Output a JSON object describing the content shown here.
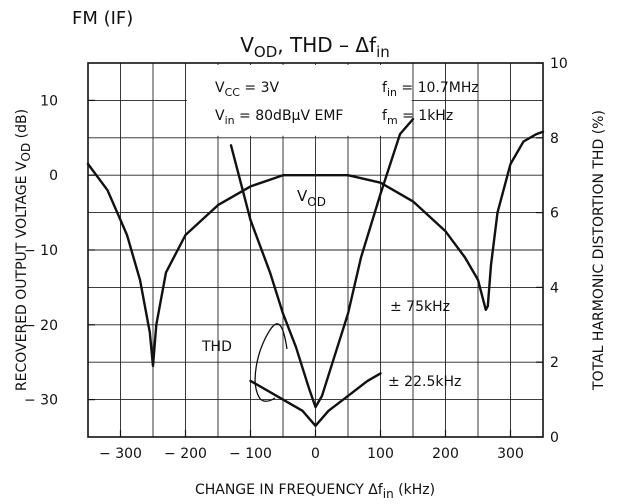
{
  "chart_data": {
    "type": "line",
    "header": "FM (IF)",
    "title": {
      "base": "V",
      "sub": "OD",
      "rest": ", THD  –  Δf",
      "sub2": "in"
    },
    "conditions": {
      "vcc": {
        "base": "V",
        "sub": "CC",
        "rest": " = 3V"
      },
      "vin": {
        "base": "V",
        "sub": "in",
        "rest": " = 80dBμV EMF"
      },
      "fin": {
        "base": "f",
        "sub": "in",
        "rest": " = 10.7MHz"
      },
      "fm": {
        "base": "f",
        "sub": "m",
        "rest": " = 1kHz"
      }
    },
    "xlabel": {
      "base": "CHANGE IN FREQUENCY  Δf",
      "sub": "in",
      "unit": "(kHz)"
    },
    "ylabel_left": {
      "text": "RECOVERED OUTPUT VOLTAGE",
      "symbol": {
        "base": "V",
        "sub": "OD"
      },
      "unit": "(dB)"
    },
    "ylabel_right": {
      "text": "TOTAL HARMONIC DISTORTION",
      "symbol": "THD",
      "unit": "(%)"
    },
    "xlim": [
      -350,
      350
    ],
    "ylim_left": [
      -35,
      15
    ],
    "ylim_right": [
      0,
      10
    ],
    "grid": true,
    "x_ticks": [
      {
        "v": -300,
        "label": "− 300"
      },
      {
        "v": -200,
        "label": "− 200"
      },
      {
        "v": -100,
        "label": "− 100"
      },
      {
        "v": 0,
        "label": "0"
      },
      {
        "v": 100,
        "label": "100"
      },
      {
        "v": 200,
        "label": "200"
      },
      {
        "v": 300,
        "label": "300"
      }
    ],
    "y_left_ticks": [
      {
        "v": 10,
        "label": "10"
      },
      {
        "v": 0,
        "label": "0"
      },
      {
        "v": -10,
        "label": "− 10"
      },
      {
        "v": -20,
        "label": "− 20"
      },
      {
        "v": -30,
        "label": "− 30"
      }
    ],
    "y_right_ticks": [
      {
        "v": 10,
        "label": "10"
      },
      {
        "v": 8,
        "label": "8"
      },
      {
        "v": 6,
        "label": "6"
      },
      {
        "v": 4,
        "label": "4"
      },
      {
        "v": 2,
        "label": "2"
      },
      {
        "v": 0,
        "label": "0"
      }
    ],
    "series": [
      {
        "label": {
          "base": "V",
          "sub": "OD"
        },
        "axis": "left",
        "x": [
          -350,
          -320,
          -290,
          -270,
          -255,
          -250,
          -245,
          -230,
          -200,
          -150,
          -100,
          -50,
          0,
          50,
          100,
          150,
          200,
          230,
          250,
          262,
          265,
          270,
          280,
          300,
          320,
          340,
          350
        ],
        "y": [
          1.5,
          -2,
          -8,
          -14,
          -21,
          -25.5,
          -20,
          -13,
          -8,
          -4,
          -1.5,
          0,
          0,
          0,
          -1,
          -3.5,
          -7.5,
          -11,
          -14,
          -18,
          -17.5,
          -12,
          -5,
          1.5,
          4.5,
          5.5,
          5.8
        ]
      },
      {
        "label": "± 75kHz",
        "axis": "right",
        "x": [
          -130,
          -100,
          -70,
          -50,
          -30,
          -10,
          0,
          10,
          30,
          50,
          70,
          100,
          130,
          150
        ],
        "y": [
          7.8,
          5.8,
          4.4,
          3.3,
          2.4,
          1.3,
          0.8,
          1.1,
          2.2,
          3.3,
          4.8,
          6.5,
          8.1,
          8.5
        ]
      },
      {
        "label": "± 22.5kHz",
        "axis": "right",
        "x": [
          -100,
          -70,
          -40,
          -20,
          0,
          20,
          50,
          80,
          100
        ],
        "y": [
          1.5,
          1.2,
          0.9,
          0.7,
          0.3,
          0.7,
          1.1,
          1.5,
          1.7
        ]
      }
    ],
    "annotations": {
      "vod": {
        "base": "V",
        "sub": "OD"
      },
      "thd": "THD",
      "w75": "± 75kHz",
      "w22": "± 22.5kHz"
    }
  }
}
